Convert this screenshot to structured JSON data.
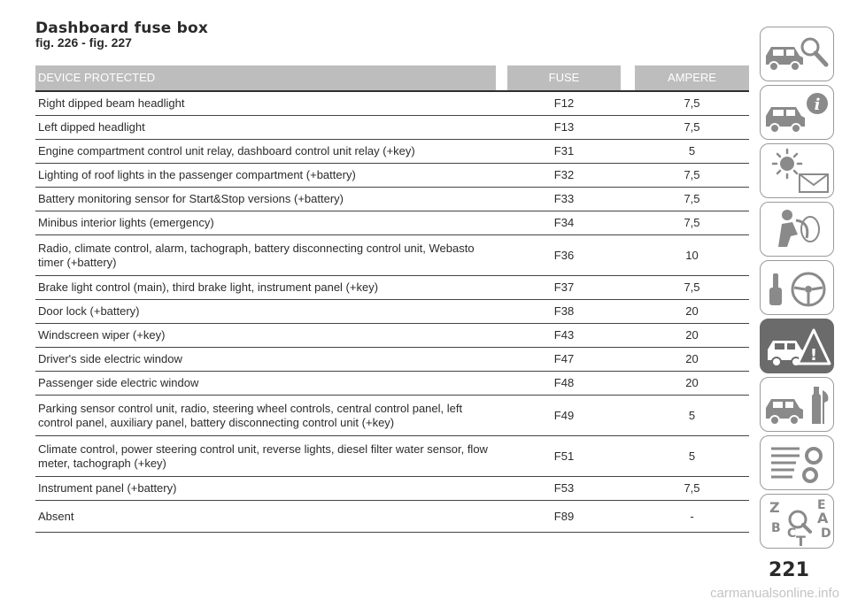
{
  "title": "Dashboard fuse box",
  "subtitle": "fig. 226 - fig. 227",
  "table": {
    "headers": {
      "device": "DEVICE PROTECTED",
      "fuse": "FUSE",
      "ampere": "AMPERE"
    },
    "rows": [
      {
        "device": "Right dipped beam headlight",
        "fuse": "F12",
        "ampere": "7,5"
      },
      {
        "device": "Left dipped headlight",
        "fuse": "F13",
        "ampere": "7,5"
      },
      {
        "device": "Engine compartment control unit relay, dashboard control unit relay (+key)",
        "fuse": "F31",
        "ampere": "5"
      },
      {
        "device": "Lighting of roof lights in the passenger compartment (+battery)",
        "fuse": "F32",
        "ampere": "7,5"
      },
      {
        "device": "Battery monitoring sensor for Start&Stop versions (+battery)",
        "fuse": "F33",
        "ampere": "7,5"
      },
      {
        "device": "Minibus interior lights (emergency)",
        "fuse": "F34",
        "ampere": "7,5"
      },
      {
        "device": "Radio, climate control, alarm, tachograph, battery disconnecting control unit, Webasto timer (+battery)",
        "fuse": "F36",
        "ampere": "10"
      },
      {
        "device": "Brake light control (main), third brake light, instrument panel (+key)",
        "fuse": "F37",
        "ampere": "7,5"
      },
      {
        "device": "Door lock (+battery)",
        "fuse": "F38",
        "ampere": "20"
      },
      {
        "device": "Windscreen wiper (+key)",
        "fuse": "F43",
        "ampere": "20"
      },
      {
        "device": "Driver's side electric window",
        "fuse": "F47",
        "ampere": "20"
      },
      {
        "device": "Passenger side electric window",
        "fuse": "F48",
        "ampere": "20"
      },
      {
        "device": "Parking sensor control unit, radio, steering wheel controls, central control panel, left control panel, auxiliary panel, battery disconnecting control unit (+key)",
        "fuse": "F49",
        "ampere": "5"
      },
      {
        "device": "Climate control, power steering control unit, reverse lights, diesel filter water sensor, flow meter, tachograph (+key)",
        "fuse": "F51",
        "ampere": "5"
      },
      {
        "device": "Instrument panel (+battery)",
        "fuse": "F53",
        "ampere": "7,5"
      },
      {
        "device": "Absent",
        "fuse": "F89",
        "ampere": "-"
      }
    ]
  },
  "sidebar_tabs": [
    {
      "icon": "car-search-icon",
      "active": false
    },
    {
      "icon": "car-info-icon",
      "active": false
    },
    {
      "icon": "warning-light-message-icon",
      "active": false
    },
    {
      "icon": "airbag-safety-icon",
      "active": false
    },
    {
      "icon": "starting-driving-icon",
      "active": false
    },
    {
      "icon": "emergency-icon",
      "active": true
    },
    {
      "icon": "maintenance-icon",
      "active": false
    },
    {
      "icon": "technical-data-icon",
      "active": false
    },
    {
      "icon": "index-icon",
      "active": false
    }
  ],
  "page_number": "221",
  "watermark": "carmanualsonline.info",
  "colors": {
    "header_bg": "#bdbdbd",
    "active_tab": "#6b6b6b",
    "tab_border": "#9a9a9a"
  }
}
